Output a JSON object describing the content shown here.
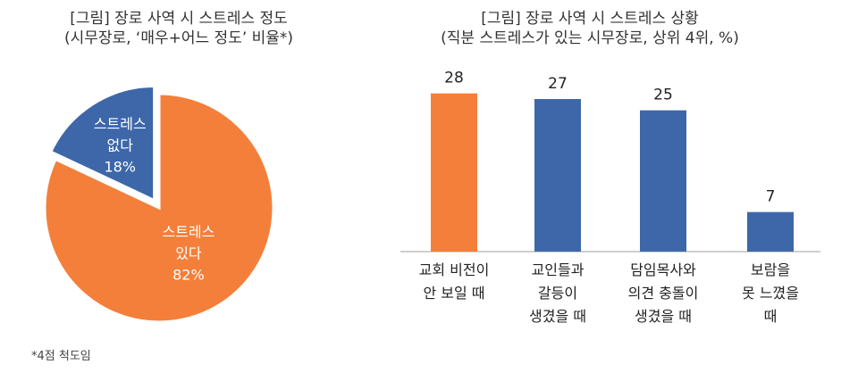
{
  "chart_data": [
    {
      "type": "pie",
      "title": "[그림] 장로 사역 시 스트레스 정도",
      "subtitle": "(시무장로, ‘매우+어느 정도’ 비율*)",
      "slices": [
        {
          "label_lines": [
            "스트레스",
            "없다"
          ],
          "value": 18,
          "value_label": "18%",
          "color": "#3D67A8",
          "exploded": true
        },
        {
          "label_lines": [
            "스트레스",
            "있다"
          ],
          "value": 82,
          "value_label": "82%",
          "color": "#F47F3A",
          "exploded": false
        }
      ],
      "footnote": "*4점 척도임"
    },
    {
      "type": "bar",
      "title": "[그림] 장로 사역 시 스트레스 상황",
      "subtitle": "(직분 스트레스가 있는 시무장로, 상위 4위, %)",
      "categories": [
        [
          "교회 비전이",
          "안 보일 때"
        ],
        [
          "교인들과",
          "갈등이",
          "생겼을 때"
        ],
        [
          "담임목사와",
          "의견 충돌이",
          "생겼을 때"
        ],
        [
          "보람을",
          "못 느꼈을",
          "때"
        ]
      ],
      "values": [
        28,
        27,
        25,
        7
      ],
      "colors": [
        "#F47F3A",
        "#3D67A8",
        "#3D67A8",
        "#3D67A8"
      ],
      "ylim": [
        0,
        30
      ]
    }
  ]
}
